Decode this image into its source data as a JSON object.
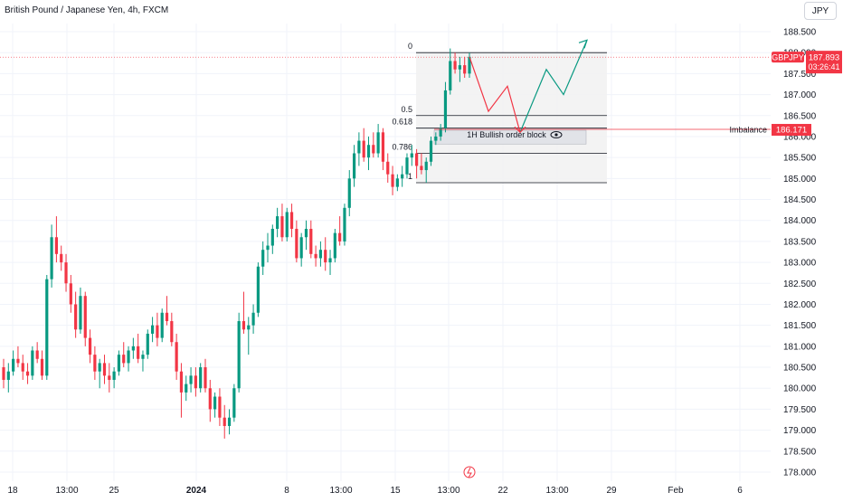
{
  "header": {
    "title": "British Pound / Japanese Yen, 4h, FXCM",
    "currency_button": "JPY"
  },
  "colors": {
    "up": "#089981",
    "down": "#f23645",
    "grid": "#f0f3fa",
    "axis_text": "#131722",
    "fib_line": "#131722",
    "fib_fill": "#f2f2f2",
    "price_tag": "#f23645",
    "projection_down": "#f23645",
    "projection_up": "#089981"
  },
  "chart_data": {
    "type": "candlestick",
    "symbol": "GBPJPY",
    "timeframe": "4h",
    "ylim": [
      177.9,
      188.9
    ],
    "y_ticks": [
      178.0,
      178.5,
      179.0,
      179.5,
      180.0,
      180.5,
      181.0,
      181.5,
      182.0,
      182.5,
      183.0,
      183.5,
      184.0,
      184.5,
      185.0,
      185.5,
      186.0,
      186.5,
      187.0,
      187.5,
      188.0,
      188.5
    ],
    "y_tick_labels": [
      "178.000",
      "178.500",
      "179.000",
      "179.500",
      "180.000",
      "180.500",
      "181.000",
      "181.500",
      "182.000",
      "182.500",
      "183.000",
      "183.500",
      "184.000",
      "184.500",
      "185.000",
      "185.500",
      "186.000",
      "186.500",
      "187.000",
      "187.500",
      "188.000",
      "188.500"
    ],
    "x_ticks": [
      {
        "label": "18",
        "bold": false
      },
      {
        "label": "13:00",
        "bold": false
      },
      {
        "label": "25",
        "bold": false
      },
      {
        "label": "2024",
        "bold": true
      },
      {
        "label": "8",
        "bold": false
      },
      {
        "label": "13:00",
        "bold": false
      },
      {
        "label": "15",
        "bold": false
      },
      {
        "label": "13:00",
        "bold": false
      },
      {
        "label": "22",
        "bold": false
      },
      {
        "label": "13:00",
        "bold": false
      },
      {
        "label": "29",
        "bold": false
      },
      {
        "label": "Feb",
        "bold": false
      },
      {
        "label": "6",
        "bold": false
      }
    ],
    "candles": [
      [
        180.5,
        180.7,
        180.0,
        180.2
      ],
      [
        180.2,
        180.6,
        179.9,
        180.4
      ],
      [
        180.4,
        180.9,
        180.3,
        180.7
      ],
      [
        180.7,
        181.0,
        180.5,
        180.6
      ],
      [
        180.6,
        180.8,
        180.2,
        180.4
      ],
      [
        180.4,
        180.6,
        180.1,
        180.3
      ],
      [
        180.3,
        181.0,
        180.2,
        180.9
      ],
      [
        180.9,
        181.1,
        180.6,
        180.7
      ],
      [
        180.7,
        180.9,
        180.2,
        180.3
      ],
      [
        180.3,
        182.7,
        180.2,
        182.6
      ],
      [
        182.6,
        183.9,
        182.4,
        183.6
      ],
      [
        183.6,
        184.1,
        183.0,
        183.2
      ],
      [
        183.2,
        183.4,
        182.8,
        183.0
      ],
      [
        183.0,
        183.2,
        182.3,
        182.5
      ],
      [
        182.5,
        182.7,
        181.8,
        182.0
      ],
      [
        182.0,
        182.3,
        181.2,
        181.4
      ],
      [
        181.4,
        182.4,
        181.3,
        182.2
      ],
      [
        182.2,
        182.3,
        181.0,
        181.2
      ],
      [
        181.2,
        181.4,
        180.6,
        180.8
      ],
      [
        180.8,
        181.0,
        180.2,
        180.4
      ],
      [
        180.4,
        180.7,
        180.0,
        180.6
      ],
      [
        180.6,
        180.8,
        180.1,
        180.3
      ],
      [
        180.3,
        180.6,
        179.9,
        180.2
      ],
      [
        180.2,
        180.5,
        180.0,
        180.4
      ],
      [
        180.4,
        180.9,
        180.3,
        180.8
      ],
      [
        180.8,
        181.1,
        180.5,
        180.6
      ],
      [
        180.6,
        181.0,
        180.4,
        180.9
      ],
      [
        180.9,
        181.2,
        180.7,
        181.0
      ],
      [
        181.0,
        181.3,
        180.6,
        180.7
      ],
      [
        180.7,
        180.9,
        180.4,
        180.8
      ],
      [
        180.8,
        181.4,
        180.7,
        181.3
      ],
      [
        181.3,
        181.7,
        181.1,
        181.5
      ],
      [
        181.5,
        181.8,
        181.0,
        181.2
      ],
      [
        181.2,
        181.9,
        181.1,
        181.8
      ],
      [
        181.8,
        182.2,
        181.5,
        181.6
      ],
      [
        181.6,
        181.8,
        181.0,
        181.1
      ],
      [
        181.1,
        181.3,
        180.2,
        180.4
      ],
      [
        180.4,
        180.6,
        179.3,
        179.9
      ],
      [
        179.9,
        180.3,
        179.7,
        180.1
      ],
      [
        180.1,
        180.5,
        179.9,
        180.3
      ],
      [
        180.3,
        180.5,
        179.8,
        180.0
      ],
      [
        180.0,
        180.6,
        179.9,
        180.5
      ],
      [
        180.5,
        180.7,
        179.9,
        180.0
      ],
      [
        180.0,
        180.2,
        179.2,
        179.5
      ],
      [
        179.5,
        179.9,
        179.3,
        179.8
      ],
      [
        179.8,
        180.0,
        179.1,
        179.3
      ],
      [
        179.3,
        179.6,
        178.8,
        179.1
      ],
      [
        179.1,
        179.5,
        178.9,
        179.3
      ],
      [
        179.3,
        180.1,
        179.2,
        180.0
      ],
      [
        180.0,
        181.8,
        179.9,
        181.6
      ],
      [
        181.6,
        182.3,
        181.3,
        181.4
      ],
      [
        181.4,
        181.7,
        180.8,
        181.5
      ],
      [
        181.5,
        182.0,
        181.3,
        181.8
      ],
      [
        181.8,
        183.0,
        181.7,
        182.9
      ],
      [
        182.9,
        183.5,
        182.7,
        183.3
      ],
      [
        183.3,
        183.7,
        183.0,
        183.4
      ],
      [
        183.4,
        183.9,
        183.2,
        183.8
      ],
      [
        183.8,
        184.3,
        183.6,
        184.1
      ],
      [
        184.1,
        184.4,
        183.5,
        183.6
      ],
      [
        183.6,
        184.3,
        183.5,
        184.2
      ],
      [
        184.2,
        184.4,
        183.6,
        183.8
      ],
      [
        183.8,
        184.0,
        183.0,
        183.1
      ],
      [
        183.1,
        183.7,
        182.9,
        183.6
      ],
      [
        183.6,
        184.0,
        183.3,
        183.8
      ],
      [
        183.8,
        184.0,
        183.1,
        183.2
      ],
      [
        183.2,
        183.4,
        182.9,
        183.1
      ],
      [
        183.1,
        183.5,
        182.9,
        183.3
      ],
      [
        183.3,
        183.6,
        182.8,
        183.0
      ],
      [
        183.0,
        183.3,
        182.7,
        183.1
      ],
      [
        183.1,
        183.8,
        183.0,
        183.7
      ],
      [
        183.7,
        184.1,
        183.4,
        183.5
      ],
      [
        183.5,
        184.4,
        183.4,
        184.3
      ],
      [
        184.3,
        185.2,
        184.1,
        185.0
      ],
      [
        185.0,
        185.8,
        184.8,
        185.6
      ],
      [
        185.6,
        186.1,
        185.3,
        185.9
      ],
      [
        185.9,
        186.2,
        185.4,
        185.5
      ],
      [
        185.5,
        186.0,
        185.2,
        185.8
      ],
      [
        185.8,
        186.1,
        185.5,
        185.6
      ],
      [
        185.6,
        186.3,
        185.5,
        186.1
      ],
      [
        186.1,
        186.2,
        185.2,
        185.4
      ],
      [
        185.4,
        185.6,
        184.9,
        185.1
      ],
      [
        185.1,
        185.3,
        184.6,
        184.8
      ],
      [
        184.8,
        185.1,
        184.7,
        185.0
      ],
      [
        185.0,
        185.3,
        184.8,
        185.1
      ],
      [
        185.1,
        185.6,
        185.0,
        185.5
      ],
      [
        185.5,
        185.8,
        185.3,
        185.6
      ],
      [
        185.6,
        185.7,
        185.0,
        185.3
      ],
      [
        185.3,
        185.6,
        185.1,
        185.2
      ],
      [
        185.2,
        185.5,
        184.9,
        185.4
      ],
      [
        185.4,
        186.0,
        185.3,
        185.9
      ],
      [
        185.9,
        186.1,
        185.8,
        186.0
      ],
      [
        186.0,
        186.3,
        185.9,
        186.2
      ],
      [
        186.2,
        187.3,
        186.1,
        187.1
      ],
      [
        187.1,
        188.1,
        187.0,
        187.8
      ],
      [
        187.8,
        188.0,
        187.5,
        187.6
      ],
      [
        187.6,
        187.9,
        187.3,
        187.7
      ],
      [
        187.7,
        187.9,
        187.4,
        187.5
      ],
      [
        187.5,
        188.0,
        187.4,
        187.9
      ]
    ],
    "fib_levels": [
      {
        "label": "0",
        "value": 188.0
      },
      {
        "label": "0.5",
        "value": 186.5
      },
      {
        "label": "0.618",
        "value": 186.2
      },
      {
        "label": "0.786",
        "value": 185.6
      },
      {
        "label": "1",
        "value": 184.9
      }
    ],
    "order_block": {
      "label": "1H Bullish order block",
      "top": 186.15,
      "bottom": 185.95
    },
    "imbalance": {
      "label": "Imbalance",
      "value": 186.171,
      "value_label": "186.171"
    },
    "last_price": {
      "symbol_label": "GBPJPY",
      "value": 187.893,
      "value_label": "187.893",
      "countdown": "03:26:41"
    },
    "projection_down": [
      187.9,
      186.6,
      187.2,
      186.1
    ],
    "projection_up": [
      186.1,
      187.6,
      187.0,
      188.3
    ]
  }
}
